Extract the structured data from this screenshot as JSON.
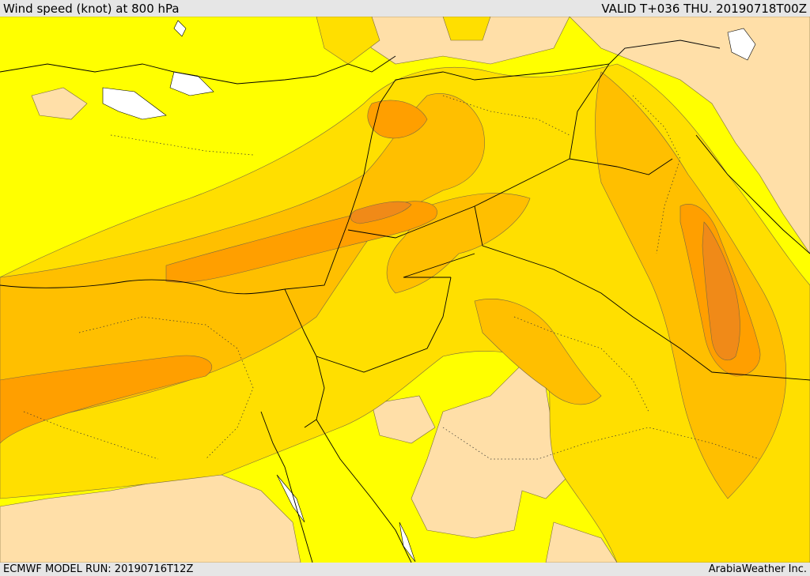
{
  "header": {
    "title": "Wind speed (knot) at 800 hPa",
    "valid": "VALID T+036 THU. 20190718T00Z"
  },
  "footer": {
    "model_run": "ECMWF MODEL RUN: 20190716T12Z",
    "credit": "ArabiaWeather Inc."
  },
  "colors": {
    "background_band": "#ffff00",
    "calm_band": "#ffdfa8",
    "band_1": "#ffdf00",
    "band_2": "#ffbf00",
    "band_3": "#ff9f00",
    "band_4": "#f08a18",
    "lakes_sea": "#ffffff",
    "outline": "#000000"
  }
}
